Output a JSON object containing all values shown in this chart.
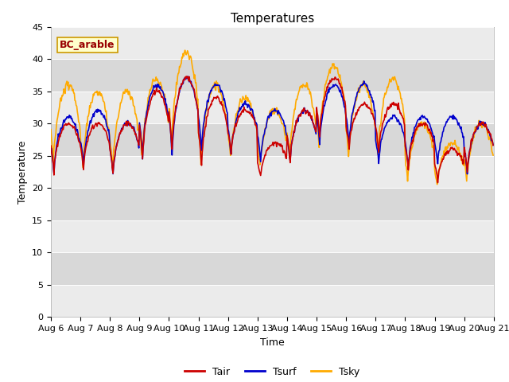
{
  "title": "Temperatures",
  "xlabel": "Time",
  "ylabel": "Temperature",
  "annotation": "BC_arable",
  "ylim": [
    0,
    45
  ],
  "yticks": [
    0,
    5,
    10,
    15,
    20,
    25,
    30,
    35,
    40,
    45
  ],
  "xtick_labels": [
    "Aug 6",
    "Aug 7",
    "Aug 8",
    "Aug 9",
    "Aug 10",
    "Aug 11",
    "Aug 12",
    "Aug 13",
    "Aug 14",
    "Aug 15",
    "Aug 16",
    "Aug 17",
    "Aug 18",
    "Aug 19",
    "Aug 20",
    "Aug 21"
  ],
  "line_colors": {
    "Tair": "#cc0000",
    "Tsurf": "#0000cc",
    "Tsky": "#ffaa00"
  },
  "line_width": 1.2,
  "plot_bg_light": "#ebebeb",
  "plot_bg_dark": "#d8d8d8",
  "title_fontsize": 11,
  "tick_fontsize": 8,
  "axis_label_fontsize": 9,
  "legend_fontsize": 9,
  "annotation_bg": "#ffffcc",
  "annotation_border": "#cc9900",
  "annotation_text_color": "#990000"
}
